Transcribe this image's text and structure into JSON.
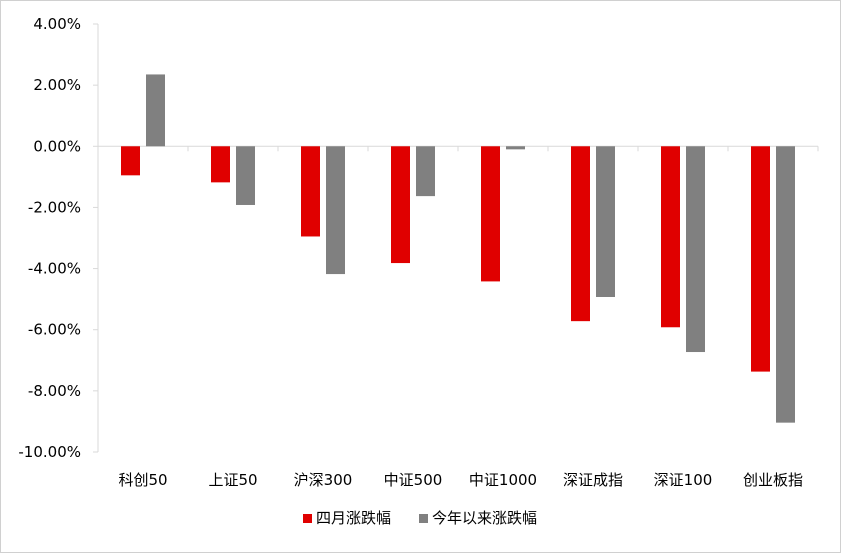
{
  "chart_data": {
    "type": "bar",
    "title": "",
    "xlabel": "",
    "ylabel": "",
    "ylim": [
      -0.1,
      0.04
    ],
    "y_tick_step": 0.02,
    "y_tick_format": "percent_2dp",
    "grid": false,
    "legend_position": "bottom",
    "categories": [
      "科创50",
      "上证50",
      "沪深300",
      "中证500",
      "中证1000",
      "深证成指",
      "深证100",
      "创业板指"
    ],
    "series": [
      {
        "name": "四月涨跌幅",
        "color": "#E00000",
        "values": [
          -0.0095,
          -0.0118,
          -0.0295,
          -0.0382,
          -0.0442,
          -0.0572,
          -0.0592,
          -0.0737
        ]
      },
      {
        "name": "今年以来涨跌幅",
        "color": "#808080",
        "values": [
          0.0235,
          -0.0192,
          -0.0418,
          -0.0163,
          -0.001,
          -0.0493,
          -0.0673,
          -0.0904
        ]
      }
    ],
    "y_ticks": [
      "4.00%",
      "2.00%",
      "0.00%",
      "-2.00%",
      "-4.00%",
      "-6.00%",
      "-8.00%",
      "-10.00%"
    ]
  }
}
